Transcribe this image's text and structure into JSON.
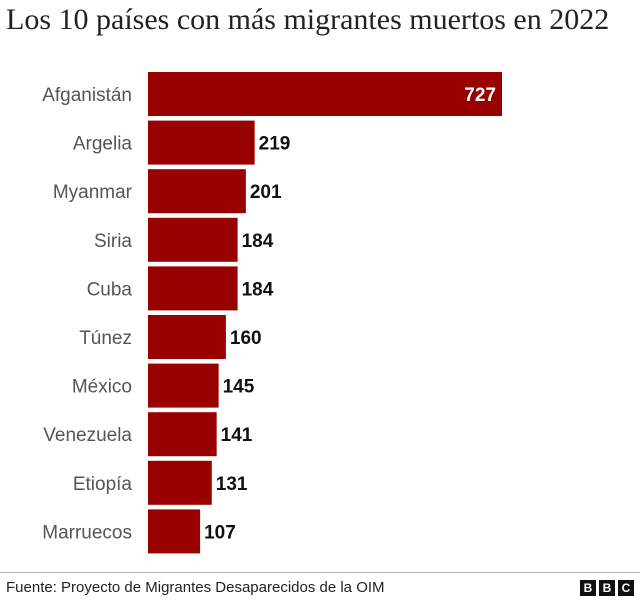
{
  "title": "Los 10 países con más migrantes muertos en 2022",
  "source": "Fuente: Proyecto de Migrantes Desaparecidos de la OIM",
  "logo": {
    "letters": [
      "B",
      "B",
      "C"
    ]
  },
  "colors": {
    "bar": "#990000",
    "label": "#555555",
    "value": "#111111",
    "value_inside": "#ffffff"
  },
  "chart_data": {
    "type": "bar",
    "orientation": "horizontal",
    "title": "Los 10 países con más migrantes muertos en 2022",
    "categories": [
      "Afganistán",
      "Argelia",
      "Myanmar",
      "Siria",
      "Cuba",
      "Túnez",
      "México",
      "Venezuela",
      "Etiopía",
      "Marruecos"
    ],
    "values": [
      727,
      219,
      201,
      184,
      184,
      160,
      145,
      141,
      131,
      107
    ],
    "xlim": [
      0,
      727
    ],
    "xlabel": "",
    "ylabel": "",
    "grid": false,
    "legend": "none"
  }
}
